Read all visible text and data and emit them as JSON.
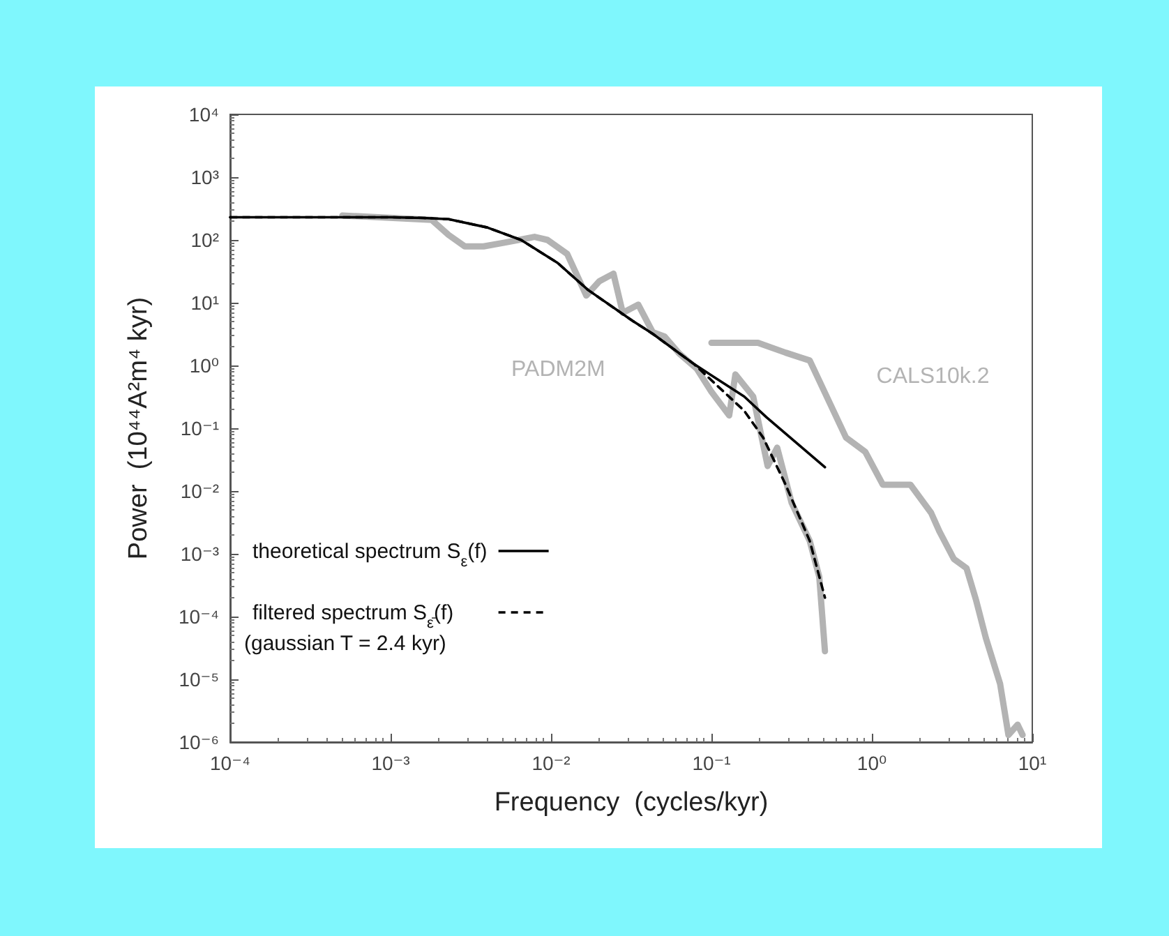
{
  "chart_data": {
    "type": "line",
    "xlabel": "Frequency  (cycles/kyr)",
    "ylabel": "Power  (10⁴⁴A²m⁴ kyr)",
    "log": "xy",
    "xlim": [
      0.0001,
      10
    ],
    "ylim": [
      1e-06,
      10000
    ],
    "xticks": [
      {
        "value": 0.0001,
        "label": "10⁻⁴"
      },
      {
        "value": 0.001,
        "label": "10⁻³"
      },
      {
        "value": 0.01,
        "label": "10⁻²"
      },
      {
        "value": 0.1,
        "label": "10⁻¹"
      },
      {
        "value": 1,
        "label": "10⁰"
      },
      {
        "value": 10,
        "label": "10¹"
      }
    ],
    "yticks": [
      {
        "value": 1e-06,
        "label": "10⁻⁶"
      },
      {
        "value": 1e-05,
        "label": "10⁻⁵"
      },
      {
        "value": 0.0001,
        "label": "10⁻⁴"
      },
      {
        "value": 0.001,
        "label": "10⁻³"
      },
      {
        "value": 0.01,
        "label": "10⁻²"
      },
      {
        "value": 0.1,
        "label": "10⁻¹"
      },
      {
        "value": 1,
        "label": "10⁰"
      },
      {
        "value": 10,
        "label": "10¹"
      },
      {
        "value": 100,
        "label": "10²"
      },
      {
        "value": 1000,
        "label": "10³"
      },
      {
        "value": 10000,
        "label": "10⁴"
      }
    ],
    "grid": false,
    "legend": "bottom left",
    "marker": "none",
    "annotations": [
      "(gaussian T = 2.4 kyr)"
    ],
    "series": [
      {
        "name": "PADM2M",
        "color": "#b3b3b3",
        "x": [
          0.0005,
          0.0018,
          0.0023,
          0.0029,
          0.0038,
          0.0052,
          0.0079,
          0.0095,
          0.0126,
          0.0166,
          0.02,
          0.0245,
          0.028,
          0.035,
          0.043,
          0.051,
          0.063,
          0.081,
          0.1,
          0.129,
          0.141,
          0.182,
          0.224,
          0.257,
          0.316,
          0.41,
          0.47,
          0.51
        ],
        "values": [
          245,
          209,
          120,
          79,
          79,
          91,
          112,
          100,
          60,
          13,
          22,
          29,
          6.9,
          9.3,
          3.4,
          2.9,
          1.55,
          0.89,
          0.38,
          0.16,
          0.72,
          0.32,
          0.025,
          0.049,
          0.0065,
          0.0016,
          0.00043,
          2.8e-05
        ]
      },
      {
        "name": "CALS10k.2",
        "color": "#b3b3b3",
        "x": [
          0.1,
          0.195,
          0.29,
          0.41,
          0.69,
          0.91,
          1.17,
          1.74,
          2.34,
          2.63,
          3.24,
          3.89,
          4.47,
          5.13,
          6.3,
          7.1,
          8.1,
          8.7
        ],
        "values": [
          2.3,
          2.3,
          1.6,
          1.2,
          0.071,
          0.042,
          0.0126,
          0.0126,
          0.0045,
          0.0023,
          0.00083,
          0.00059,
          0.00018,
          4.6e-05,
          8.5e-06,
          1.3e-06,
          1.9e-06,
          1.3e-06
        ]
      },
      {
        "name": "theoretical spectrum   S$_{ε}$(f)",
        "color": "#000000",
        "line_style": "solid",
        "x": [
          0.0001,
          0.001,
          0.0016,
          0.0023,
          0.004,
          0.0065,
          0.011,
          0.017,
          0.032,
          0.043,
          0.078,
          0.16,
          0.22,
          0.51
        ],
        "values": [
          230,
          230,
          224,
          214,
          158,
          100,
          43,
          16,
          5.2,
          3.2,
          1.05,
          0.32,
          0.15,
          0.024
        ]
      },
      {
        "name": "filtered spectrum         S$_{ε̄}$(f)",
        "color": "#000000",
        "line_style": "dashed",
        "x": [
          0.0001,
          0.001,
          0.0016,
          0.0023,
          0.004,
          0.0065,
          0.011,
          0.017,
          0.032,
          0.043,
          0.078,
          0.16,
          0.21,
          0.29,
          0.41,
          0.51
        ],
        "values": [
          230,
          230,
          224,
          214,
          158,
          100,
          43,
          16,
          5.2,
          3.2,
          1.05,
          0.19,
          0.071,
          0.0126,
          0.0016,
          0.0002
        ]
      }
    ]
  }
}
